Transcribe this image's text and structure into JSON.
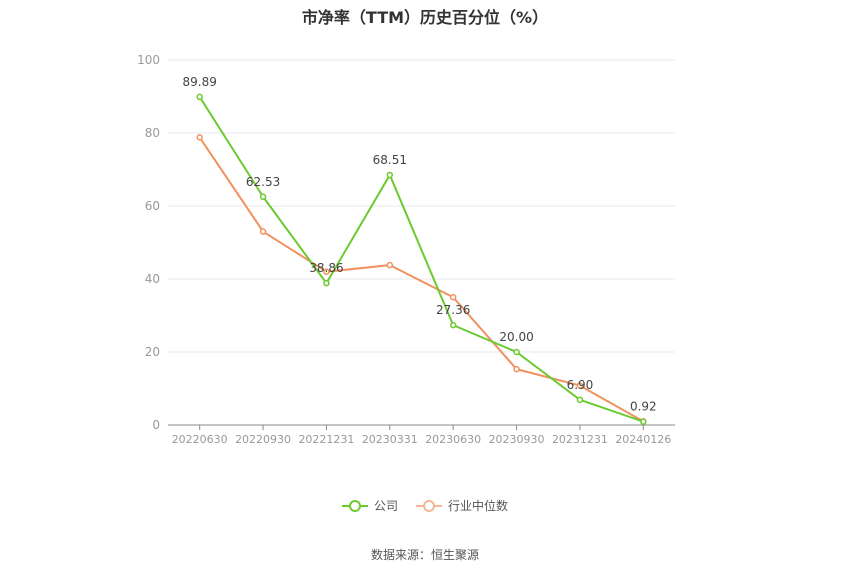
{
  "chart_data": {
    "type": "line",
    "title": "市净率（TTM）历史百分位（%）",
    "categories": [
      "20220630",
      "20220930",
      "20221231",
      "20230331",
      "20230630",
      "20230930",
      "20231231",
      "20240126"
    ],
    "ylim": [
      0,
      100
    ],
    "yticks": [
      0,
      20,
      40,
      60,
      80,
      100
    ],
    "grid": true,
    "legend_position": "bottom",
    "series": [
      {
        "name": "公司",
        "color": "#6cc92f",
        "values": [
          89.89,
          62.53,
          38.86,
          68.51,
          27.36,
          20.0,
          6.9,
          0.92
        ],
        "labels": [
          "89.89",
          "62.53",
          "38.86",
          "68.51",
          "27.36",
          "20.00",
          "6.90",
          "0.92"
        ]
      },
      {
        "name": "行业中位数",
        "color": "#f0915f",
        "values": [
          78.8,
          53.0,
          42.0,
          43.8,
          35.0,
          15.3,
          10.8,
          1.0
        ]
      }
    ]
  },
  "source": "数据来源：恒生聚源"
}
